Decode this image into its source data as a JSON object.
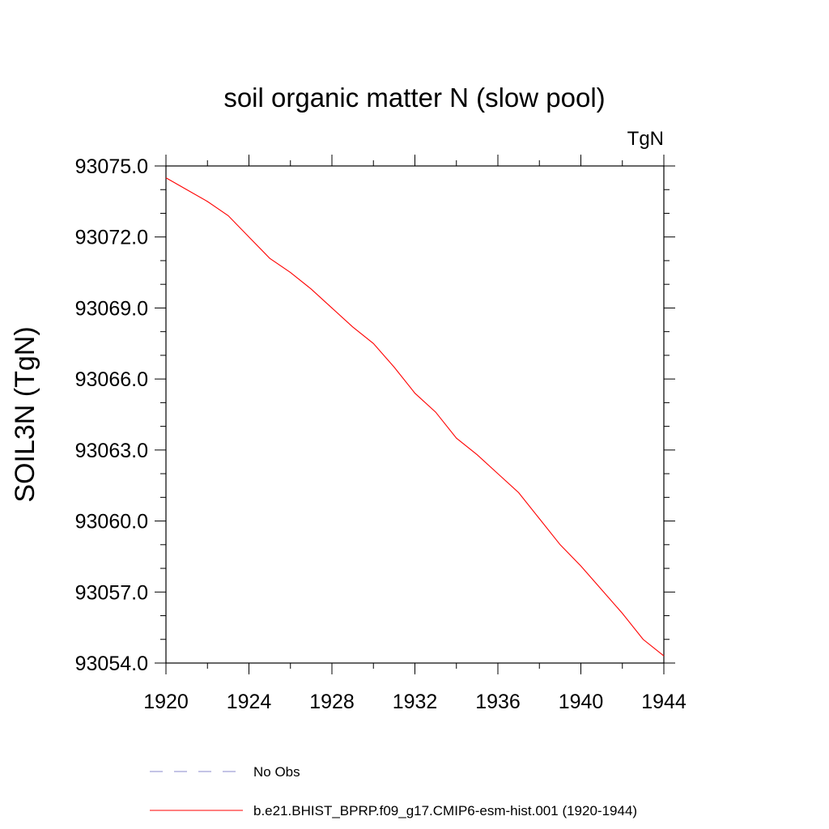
{
  "chart_data": {
    "type": "line",
    "title": "soil organic matter N (slow pool)",
    "units_label": "TgN",
    "xlabel": "",
    "ylabel": "SOIL3N  (TgN)",
    "xlim": [
      1920,
      1944
    ],
    "ylim": [
      93054.0,
      93075.0
    ],
    "x_ticks": [
      1920,
      1924,
      1928,
      1932,
      1936,
      1940,
      1944
    ],
    "x_tick_labels": [
      "1920",
      "1924",
      "1928",
      "1932",
      "1936",
      "1940",
      "1944"
    ],
    "y_ticks": [
      93054.0,
      93057.0,
      93060.0,
      93063.0,
      93066.0,
      93069.0,
      93072.0,
      93075.0
    ],
    "y_tick_labels": [
      "93054.0",
      "93057.0",
      "93060.0",
      "93063.0",
      "93066.0",
      "93069.0",
      "93072.0",
      "93075.0"
    ],
    "grid": false,
    "legend_position": "bottom",
    "series": [
      {
        "name": "b.e21.BHIST_BPRP.f09_g17.CMIP6-esm-hist.001 (1920-1944)",
        "color": "#ff0000",
        "style": "solid",
        "x": [
          1920,
          1921,
          1922,
          1923,
          1924,
          1925,
          1926,
          1927,
          1928,
          1929,
          1930,
          1931,
          1932,
          1933,
          1934,
          1935,
          1936,
          1937,
          1938,
          1939,
          1940,
          1941,
          1942,
          1943,
          1944
        ],
        "values": [
          93074.5,
          93074.0,
          93073.5,
          93072.9,
          93072.0,
          93071.1,
          93070.5,
          93069.8,
          93069.0,
          93068.2,
          93067.5,
          93066.5,
          93065.4,
          93064.6,
          93063.5,
          93062.8,
          93062.0,
          93061.2,
          93060.1,
          93059.0,
          93058.1,
          93057.1,
          93056.1,
          93055.0,
          93054.3
        ]
      }
    ],
    "legend": [
      {
        "label": "No Obs",
        "color": "#8888cc",
        "style": "dashed"
      },
      {
        "label": "b.e21.BHIST_BPRP.f09_g17.CMIP6-esm-hist.001 (1920-1944)",
        "color": "#ff0000",
        "style": "solid"
      }
    ]
  }
}
